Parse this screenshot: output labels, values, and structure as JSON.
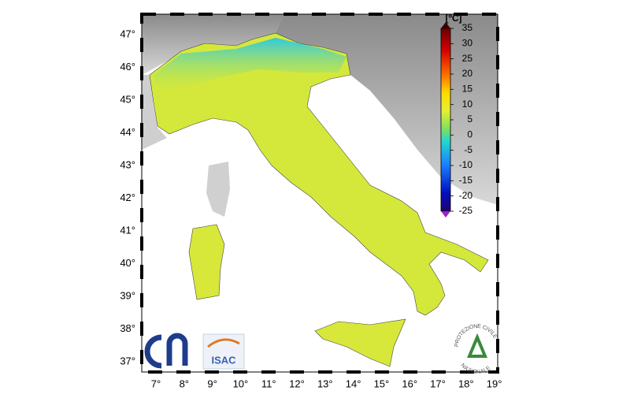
{
  "map": {
    "lat_labels": [
      "47°",
      "46°",
      "45°",
      "44°",
      "43°",
      "42°",
      "41°",
      "40°",
      "39°",
      "38°",
      "37°"
    ],
    "lon_labels": [
      "7°",
      "8°",
      "9°",
      "10°",
      "11°",
      "12°",
      "13°",
      "14°",
      "15°",
      "16°",
      "17°",
      "18°",
      "19°"
    ]
  },
  "colorbar": {
    "unit": "[ºC]",
    "ticks": [
      35,
      30,
      25,
      20,
      15,
      10,
      5,
      0,
      -5,
      -10,
      -15,
      -20,
      -25
    ]
  },
  "logos": {
    "isac": "ISAC",
    "protezione_top": "PROTEZIONE CIVILE",
    "protezione_bottom": "NAZIONALE"
  }
}
